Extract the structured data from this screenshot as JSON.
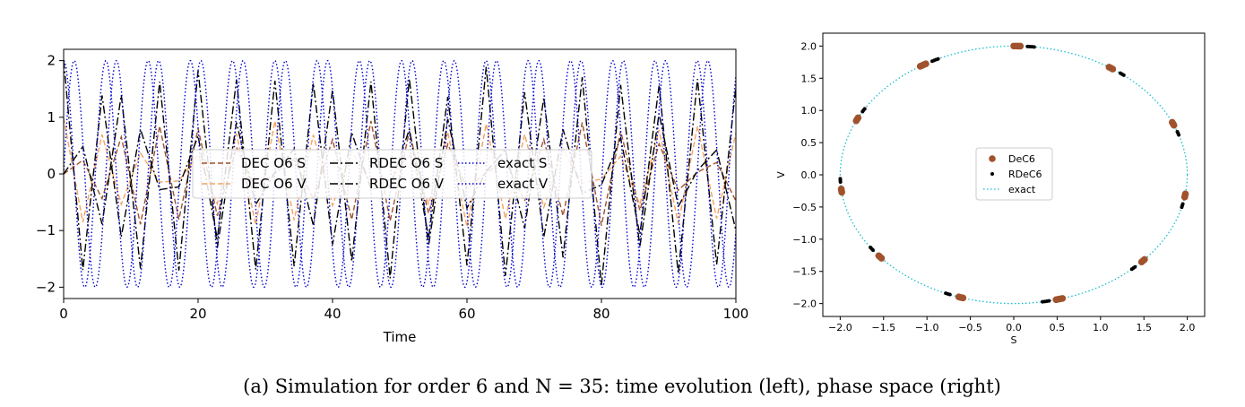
{
  "caption": "(a) Simulation for order 6 and N = 35: time evolution (left), phase space (right)",
  "chart_data": [
    {
      "type": "line",
      "xlabel": "Time",
      "ylabel": "",
      "xlim": [
        0,
        100
      ],
      "ylim": [
        -2.2,
        2.2
      ],
      "xticks": [
        0,
        20,
        40,
        60,
        80,
        100
      ],
      "yticks": [
        -2,
        -1,
        0,
        1,
        2
      ],
      "legend_location": "center",
      "series": [
        {
          "name": "DEC O6 S",
          "color": "#a0522d",
          "dash": "dashed"
        },
        {
          "name": "DEC O6 V",
          "color": "#f4a460",
          "dash": "dashed"
        },
        {
          "name": "RDEC O6 S",
          "color": "#000000",
          "dash": "dashdot"
        },
        {
          "name": "RDEC O6 V",
          "color": "#000000",
          "dash": "dashdot"
        },
        {
          "name": "exact S",
          "color": "#0000cd",
          "dash": "dotted"
        },
        {
          "name": "exact V",
          "color": "#0000cd",
          "dash": "dotted"
        }
      ],
      "model": {
        "exact_S": "2 sin(t)",
        "exact_V": "2 cos(t)",
        "time_steps": 35
      }
    },
    {
      "type": "scatter",
      "xlabel": "S",
      "ylabel": "V",
      "xlim": [
        -2.2,
        2.2
      ],
      "ylim": [
        -2.2,
        2.2
      ],
      "xticks": [
        -2.0,
        -1.5,
        -1.0,
        -0.5,
        0.0,
        0.5,
        1.0,
        1.5,
        2.0
      ],
      "yticks": [
        -2.0,
        -1.5,
        -1.0,
        -0.5,
        0.0,
        0.5,
        1.0,
        1.5,
        2.0
      ],
      "legend_location": "center",
      "series": [
        {
          "name": "DeC6",
          "color": "#a0522d",
          "marker": "circle"
        },
        {
          "name": "RDeC6",
          "color": "#000000",
          "marker": "dot"
        },
        {
          "name": "exact",
          "color": "#17becf",
          "dash": "dotted"
        }
      ]
    }
  ]
}
